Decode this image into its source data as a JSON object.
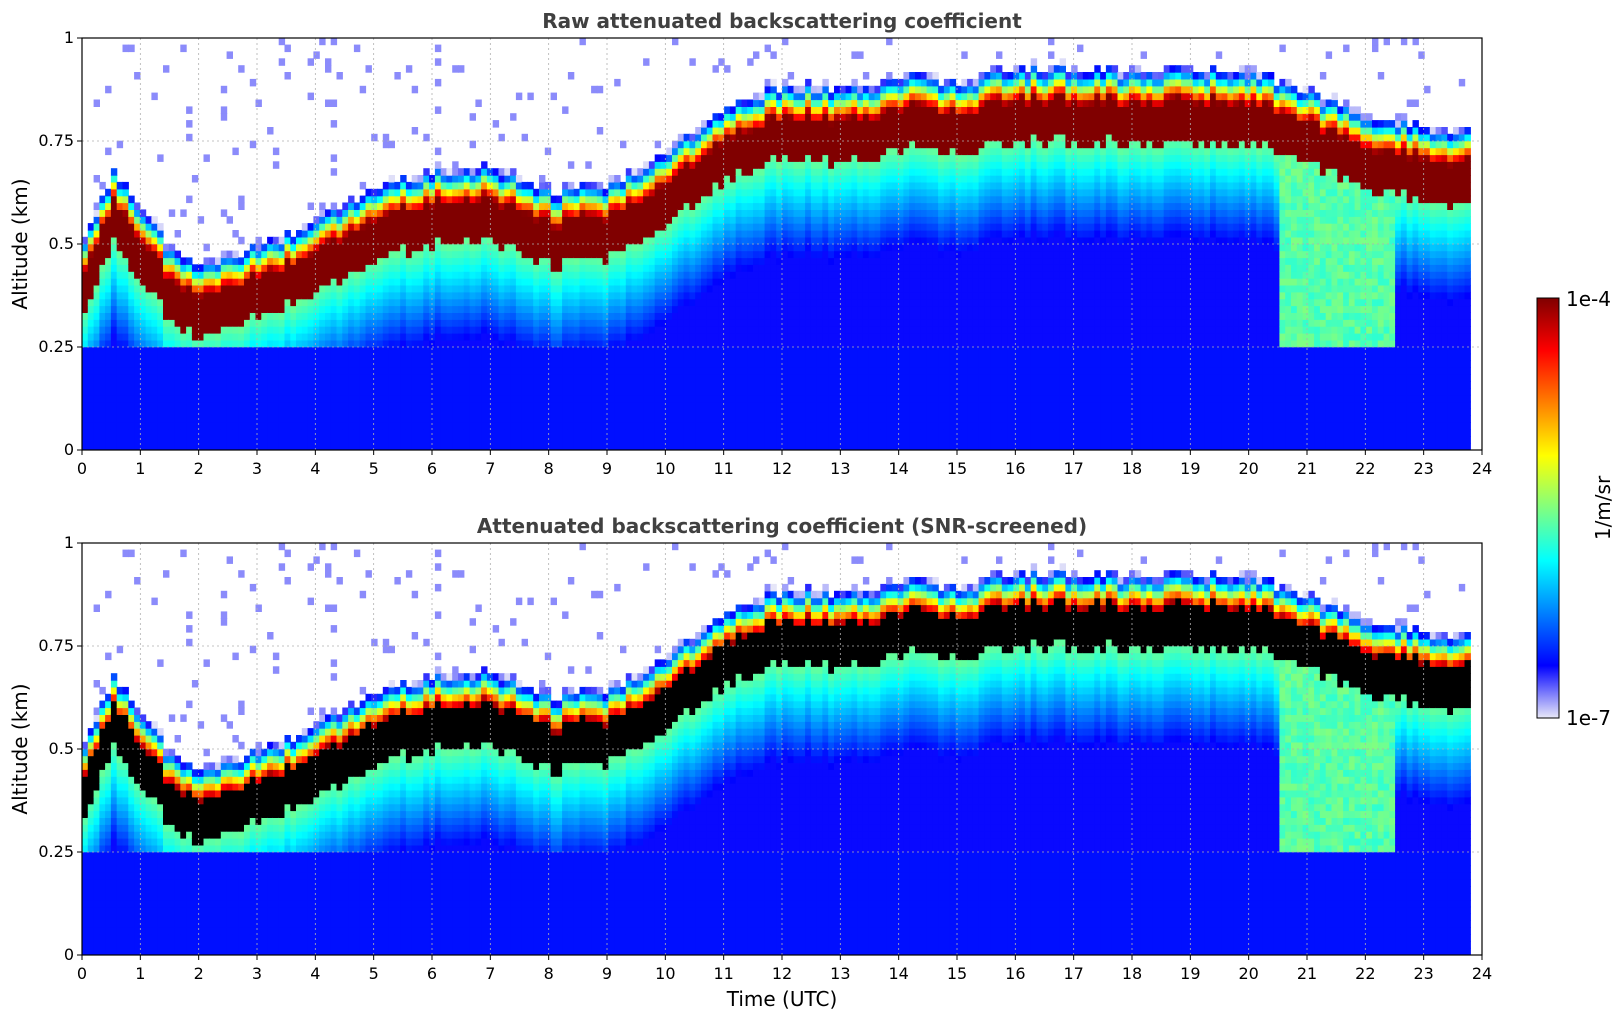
{
  "chart_data": [
    {
      "type": "heatmap",
      "title": "Raw attenuated backscattering coefficient",
      "xlabel": "",
      "ylabel": "Altitude (km)",
      "xlim": [
        0,
        24
      ],
      "ylim": [
        0,
        1
      ],
      "xticks": [
        "0",
        "1",
        "2",
        "3",
        "4",
        "5",
        "6",
        "7",
        "8",
        "9",
        "10",
        "11",
        "12",
        "13",
        "14",
        "15",
        "16",
        "17",
        "18",
        "19",
        "20",
        "21",
        "22",
        "23",
        "24"
      ],
      "yticks": [
        "0",
        "0.25",
        "0.5",
        "0.75",
        "1"
      ],
      "grid": true,
      "screened": false,
      "layer_center_km": {
        "x": [
          0,
          0.5,
          1,
          1.5,
          2,
          3,
          4,
          5,
          6,
          7,
          8,
          9,
          10,
          11,
          12,
          13,
          14,
          15,
          16,
          17,
          18,
          19,
          20,
          21,
          22,
          23,
          23.8
        ],
        "y": [
          0.38,
          0.55,
          0.45,
          0.36,
          0.33,
          0.37,
          0.43,
          0.52,
          0.55,
          0.56,
          0.5,
          0.52,
          0.6,
          0.7,
          0.76,
          0.75,
          0.78,
          0.77,
          0.8,
          0.8,
          0.79,
          0.8,
          0.79,
          0.74,
          0.68,
          0.66,
          0.65
        ]
      },
      "data_end_hour": 23.8
    },
    {
      "type": "heatmap",
      "title": "Attenuated backscattering coefficient (SNR-screened)",
      "xlabel": "Time (UTC)",
      "ylabel": "Altitude (km)",
      "xlim": [
        0,
        24
      ],
      "ylim": [
        0,
        1
      ],
      "xticks": [
        "0",
        "1",
        "2",
        "3",
        "4",
        "5",
        "6",
        "7",
        "8",
        "9",
        "10",
        "11",
        "12",
        "13",
        "14",
        "15",
        "16",
        "17",
        "18",
        "19",
        "20",
        "21",
        "22",
        "23",
        "24"
      ],
      "yticks": [
        "0",
        "0.25",
        "0.5",
        "0.75",
        "1"
      ],
      "grid": true,
      "screened": true,
      "layer_center_km": {
        "x": [
          0,
          0.5,
          1,
          1.5,
          2,
          3,
          4,
          5,
          6,
          7,
          8,
          9,
          10,
          11,
          12,
          13,
          14,
          15,
          16,
          17,
          18,
          19,
          20,
          21,
          22,
          23,
          23.8
        ],
        "y": [
          0.38,
          0.55,
          0.45,
          0.36,
          0.33,
          0.37,
          0.43,
          0.52,
          0.55,
          0.56,
          0.5,
          0.52,
          0.6,
          0.7,
          0.76,
          0.75,
          0.78,
          0.77,
          0.8,
          0.8,
          0.79,
          0.8,
          0.79,
          0.74,
          0.68,
          0.66,
          0.65
        ]
      },
      "data_end_hour": 23.8
    }
  ],
  "colorbar": {
    "label": "1/m/sr",
    "max_label": "1e-4",
    "min_label": "1e-7",
    "scale": "log",
    "range": [
      1e-07,
      0.0001
    ],
    "colormap": [
      "#e8e8f8",
      "#0000ff",
      "#0080ff",
      "#00ffff",
      "#80ff80",
      "#ffff00",
      "#ff8000",
      "#ff0000",
      "#800000"
    ]
  }
}
